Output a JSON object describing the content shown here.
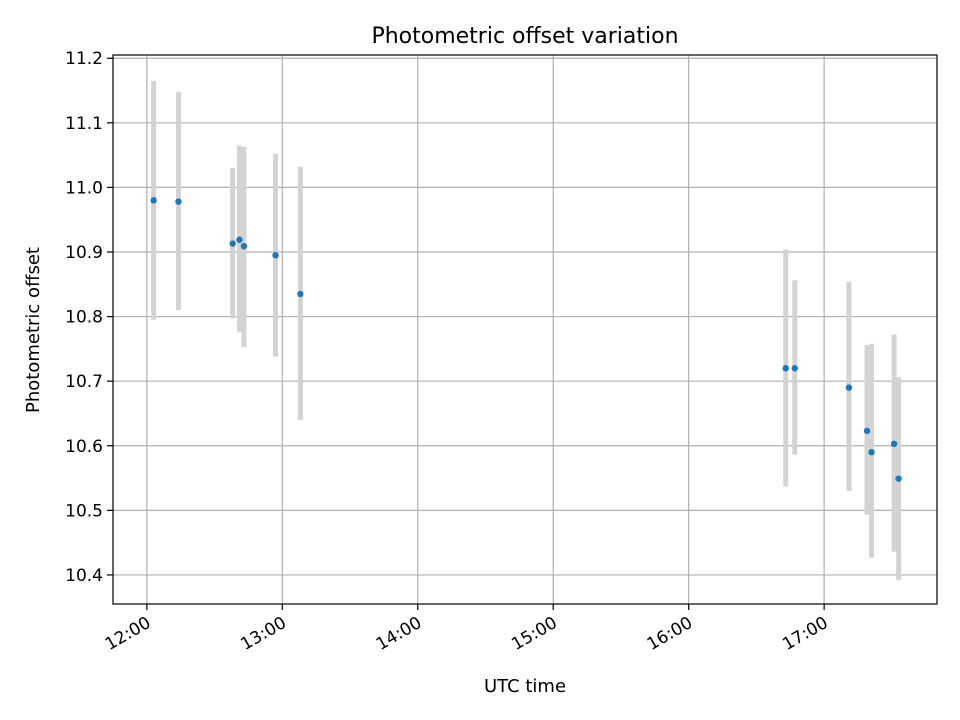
{
  "chart_data": {
    "type": "scatter",
    "title": "Photometric offset variation",
    "xlabel": "UTC time",
    "ylabel": "Photometric offset",
    "x_unit": "time (HH:MM)",
    "xlim": [
      "11:45",
      "17:50"
    ],
    "ylim": [
      10.355,
      11.205
    ],
    "x_ticks": [
      "12:00",
      "13:00",
      "14:00",
      "15:00",
      "16:00",
      "17:00"
    ],
    "y_ticks": [
      10.4,
      10.5,
      10.6,
      10.7,
      10.8,
      10.9,
      11.0,
      11.1,
      11.2
    ],
    "y_tick_labels": [
      "10.4",
      "10.5",
      "10.6",
      "10.7",
      "10.8",
      "10.9",
      "11.0",
      "11.1",
      "11.2"
    ],
    "grid": true,
    "colors": {
      "points": "#1f77b4",
      "error_bars": "#d3d3d3",
      "grid": "#b0b0b0"
    },
    "points": [
      {
        "x": "12:03",
        "y": 10.98,
        "lo": 10.795,
        "hi": 11.165
      },
      {
        "x": "12:14",
        "y": 10.978,
        "lo": 10.81,
        "hi": 11.148
      },
      {
        "x": "12:38",
        "y": 10.913,
        "lo": 10.797,
        "hi": 11.03
      },
      {
        "x": "12:41",
        "y": 10.919,
        "lo": 10.776,
        "hi": 11.065
      },
      {
        "x": "12:43",
        "y": 10.909,
        "lo": 10.753,
        "hi": 11.063
      },
      {
        "x": "12:57",
        "y": 10.895,
        "lo": 10.738,
        "hi": 11.052
      },
      {
        "x": "13:08",
        "y": 10.835,
        "lo": 10.64,
        "hi": 11.032
      },
      {
        "x": "16:43",
        "y": 10.72,
        "lo": 10.537,
        "hi": 10.904
      },
      {
        "x": "16:47",
        "y": 10.72,
        "lo": 10.586,
        "hi": 10.856
      },
      {
        "x": "17:11",
        "y": 10.69,
        "lo": 10.53,
        "hi": 10.854
      },
      {
        "x": "17:19",
        "y": 10.623,
        "lo": 10.493,
        "hi": 10.756
      },
      {
        "x": "17:21",
        "y": 10.59,
        "lo": 10.427,
        "hi": 10.758
      },
      {
        "x": "17:31",
        "y": 10.603,
        "lo": 10.436,
        "hi": 10.772
      },
      {
        "x": "17:33",
        "y": 10.549,
        "lo": 10.392,
        "hi": 10.706
      }
    ]
  }
}
